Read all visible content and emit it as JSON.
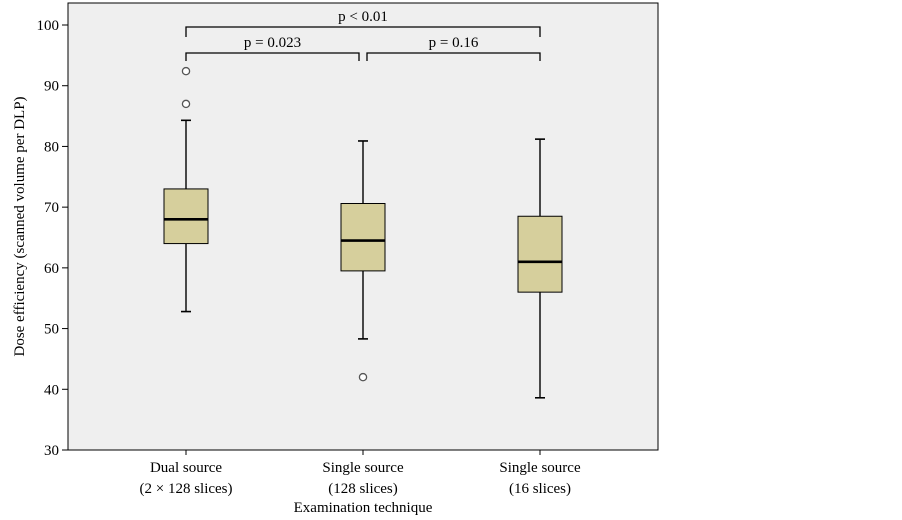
{
  "chart_data": {
    "type": "box",
    "ylabel": "Dose efficiency (scanned volume per DLP)",
    "xlabel": "Examination technique",
    "ylim": [
      30,
      100
    ],
    "yticks": [
      30,
      40,
      50,
      60,
      70,
      80,
      90,
      100
    ],
    "grid": false,
    "categories": [
      [
        "Dual source",
        "(2 × 128 slices)"
      ],
      [
        "Single source",
        "(128 slices)"
      ],
      [
        "Single source",
        "(16 slices)"
      ]
    ],
    "boxes": [
      {
        "whisker_low": 52.8,
        "q1": 64.0,
        "median": 68.0,
        "q3": 73.0,
        "whisker_high": 84.3,
        "outliers": [
          87.0,
          92.4
        ]
      },
      {
        "whisker_low": 48.3,
        "q1": 59.5,
        "median": 64.5,
        "q3": 70.6,
        "whisker_high": 80.9,
        "outliers": [
          42.0
        ]
      },
      {
        "whisker_low": 38.6,
        "q1": 56.0,
        "median": 61.0,
        "q3": 68.5,
        "whisker_high": 81.2,
        "outliers": []
      }
    ],
    "comparisons": [
      {
        "from": 0,
        "to": 1,
        "label": "p = 0.023"
      },
      {
        "from": 1,
        "to": 2,
        "label": "p = 0.16"
      },
      {
        "from": 0,
        "to": 2,
        "label": "p < 0.01"
      }
    ],
    "colors": {
      "box_fill": "#d6cf9c",
      "plot_bg": "#efefef",
      "stroke": "#000000",
      "outlier_stroke": "#555555"
    }
  }
}
